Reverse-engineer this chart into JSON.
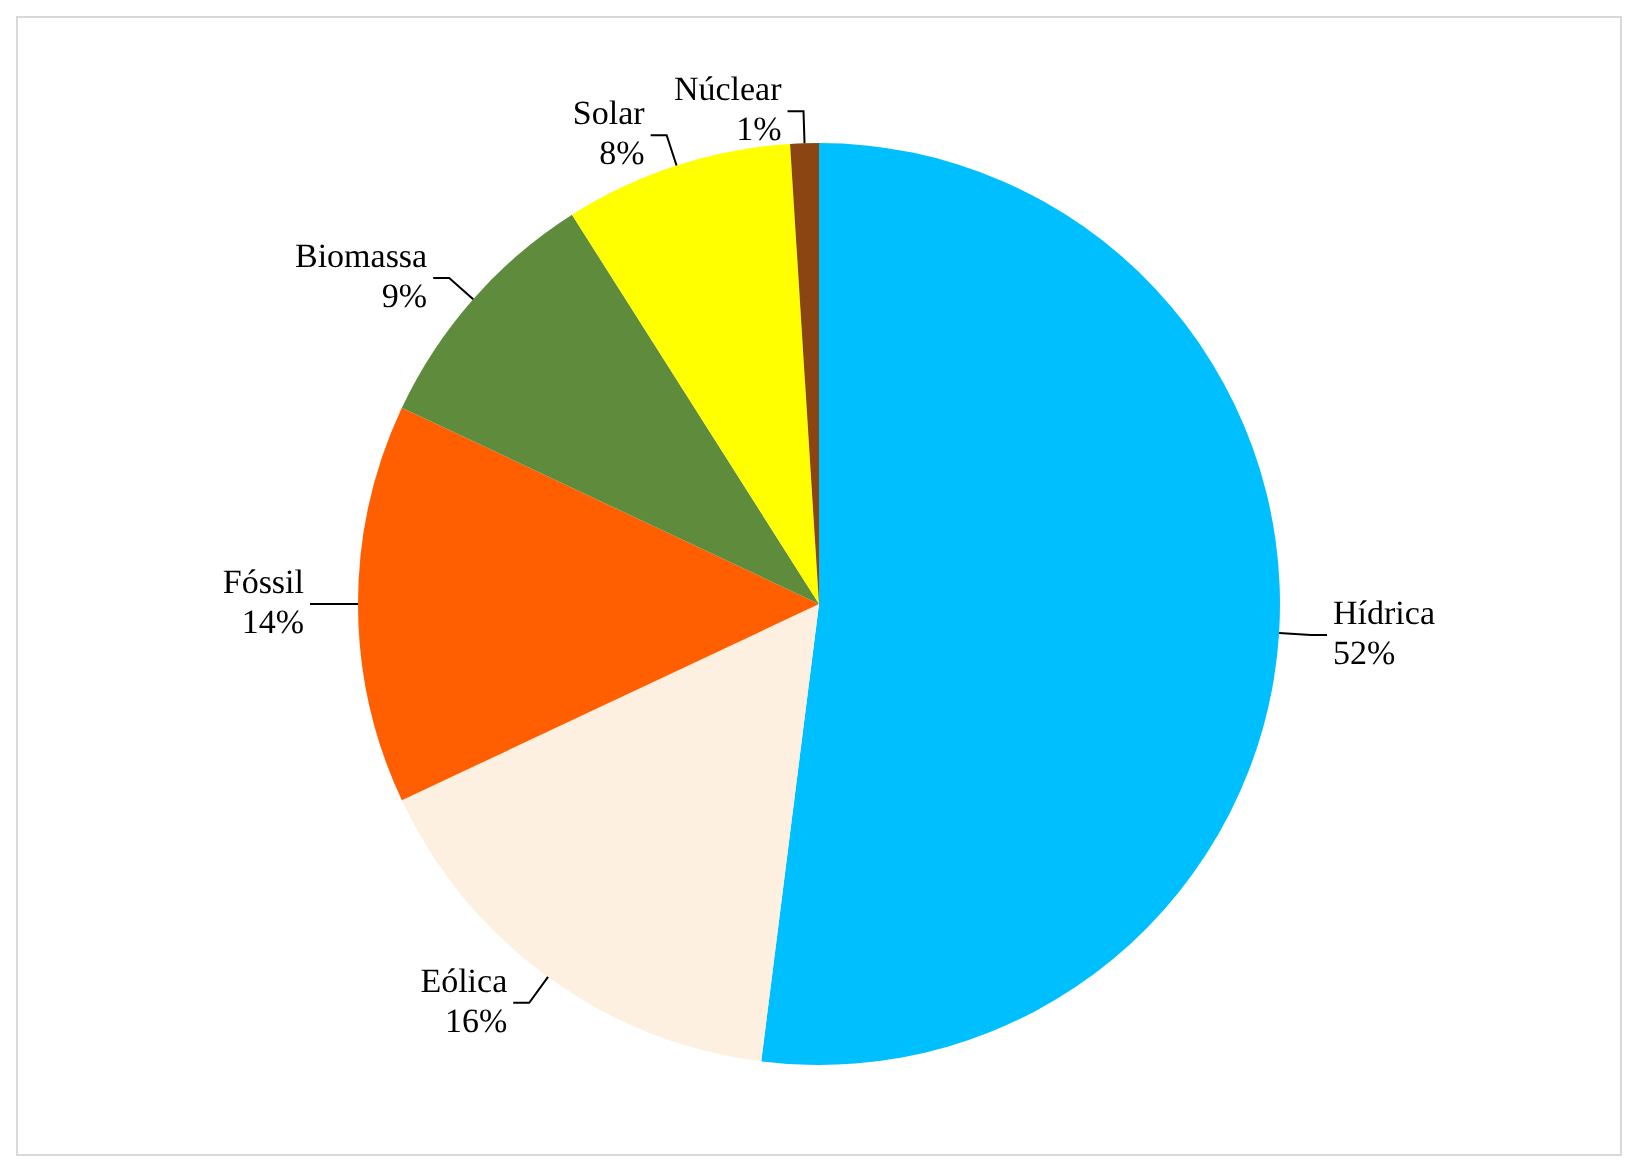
{
  "chart_data": {
    "type": "pie",
    "categories": [
      "Hídrica",
      "Eólica",
      "Fóssil",
      "Biomassa",
      "Solar",
      "Núclear"
    ],
    "values": [
      52,
      16,
      14,
      9,
      8,
      1
    ],
    "value_labels": [
      "52%",
      "16%",
      "14%",
      "9%",
      "8%",
      "1%"
    ],
    "colors": [
      "#00bfff",
      "#fdf0e1",
      "#ff5f00",
      "#5e8c3c",
      "#ffff00",
      "#8b4513"
    ],
    "legend": false
  }
}
